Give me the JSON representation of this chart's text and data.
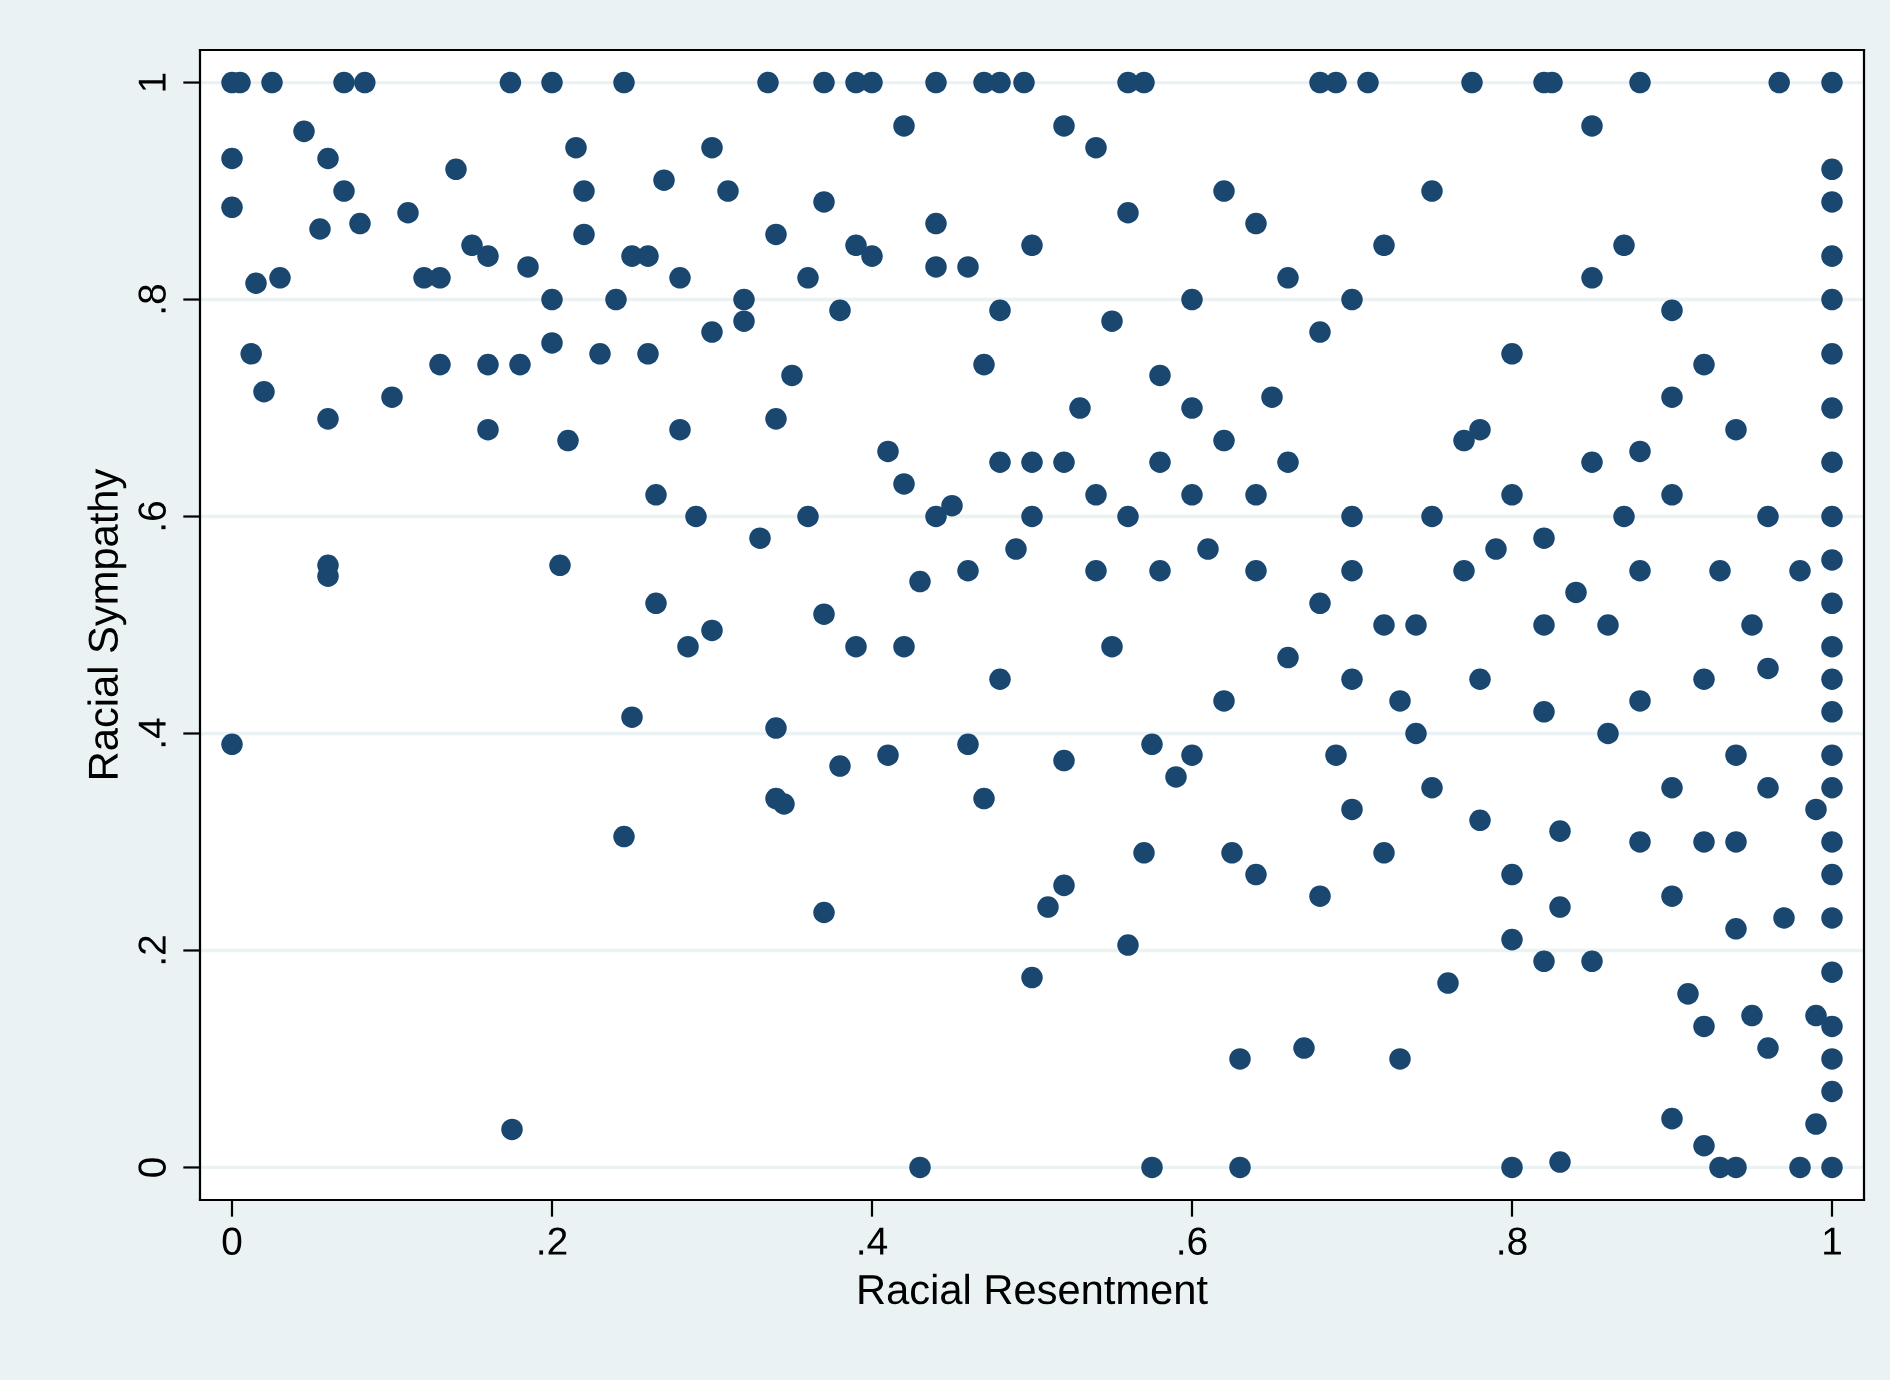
{
  "chart_data": {
    "type": "scatter",
    "xlabel": "Racial Resentment",
    "ylabel": "Racial Sympathy",
    "xlim": [
      -0.02,
      1.02
    ],
    "ylim": [
      -0.03,
      1.03
    ],
    "xticks": [
      {
        "value": 0,
        "label": "0"
      },
      {
        "value": 0.2,
        "label": ".2"
      },
      {
        "value": 0.4,
        "label": ".4"
      },
      {
        "value": 0.6,
        "label": ".6"
      },
      {
        "value": 0.8,
        "label": ".8"
      },
      {
        "value": 1,
        "label": "1"
      }
    ],
    "yticks": [
      {
        "value": 0,
        "label": "0"
      },
      {
        "value": 0.2,
        "label": ".2"
      },
      {
        "value": 0.4,
        "label": ".4"
      },
      {
        "value": 0.6,
        "label": ".6"
      },
      {
        "value": 0.8,
        "label": ".8"
      },
      {
        "value": 1,
        "label": "1"
      }
    ],
    "grid": "y",
    "marker": "circle",
    "series": [
      {
        "color": "#1a476f",
        "x": [
          0,
          0.005,
          0.025,
          0.07,
          0.083,
          0.174,
          0.2,
          0.245,
          0.335,
          0.37,
          0.39,
          0.4,
          0.44,
          0.47,
          0.48,
          0.495,
          0.56,
          0.57,
          0.68,
          0.69,
          0.71,
          0.775,
          0.82,
          0.825,
          0.88,
          0.967,
          1,
          0,
          0,
          0,
          0.012,
          0.015,
          0.02,
          0.03,
          0.045,
          0.055,
          0.06,
          0.06,
          0.06,
          0.06,
          0.07,
          0.08,
          0.1,
          0.12,
          0.13,
          0.14,
          0.16,
          0.16,
          0.16,
          0.175,
          0.185,
          0.2,
          0.2,
          0.205,
          0.21,
          0.215,
          0.22,
          0.23,
          0.25,
          0.245,
          0.25,
          0.26,
          0.265,
          0.265,
          0.27,
          0.28,
          0.285,
          0.29,
          0.3,
          0.3,
          0.31,
          0.32,
          0.33,
          0.34,
          0.34,
          0.345,
          0.34,
          0.35,
          0.36,
          0.37,
          0.37,
          0.37,
          0.38,
          0.39,
          0.39,
          0.41,
          0.41,
          0.42,
          0.43,
          0.43,
          0.44,
          0.45,
          0.46,
          0.47,
          0.47,
          0.48,
          0.49,
          0.5,
          0.5,
          0.51,
          0.52,
          0.52,
          0.52,
          0.53,
          0.54,
          0.55,
          0.55,
          0.56,
          0.57,
          0.575,
          0.575,
          0.58,
          0.59,
          0.6,
          0.6,
          0.61,
          0.62,
          0.625,
          0.63,
          0.63,
          0.64,
          0.64,
          0.65,
          0.66,
          0.67,
          0.68,
          0.69,
          0.7,
          0.7,
          0.72,
          0.73,
          0.73,
          0.74,
          0.75,
          0.76,
          0.77,
          0.78,
          0.79,
          0.8,
          0.8,
          0.8,
          0.82,
          0.82,
          0.83,
          0.83,
          0.83,
          0.84,
          0.85,
          0.86,
          0.87,
          0.88,
          0.9,
          0.9,
          0.91,
          0.92,
          0.92,
          0.93,
          0.94,
          0.94,
          0.95,
          0.96,
          0.97,
          0.98,
          0.99,
          0.99,
          0.99,
          1,
          1,
          1,
          1,
          1,
          1,
          1,
          1,
          1,
          1,
          1,
          1,
          1,
          1,
          1,
          1,
          1,
          1,
          1,
          1,
          1,
          1,
          1,
          0.95,
          0.93,
          0.96,
          0.94,
          0.92,
          0.9,
          0.88,
          0.85,
          0.87,
          0.9,
          0.85,
          0.8,
          0.78,
          0.75,
          0.72,
          0.7,
          0.68,
          0.66,
          0.64,
          0.62,
          0.6,
          0.58,
          0.56,
          0.54,
          0.52,
          0.5,
          0.48,
          0.46,
          0.44,
          0.42,
          0.4,
          0.38,
          0.36,
          0.34,
          0.32,
          0.3,
          0.28,
          0.26,
          0.24,
          0.22,
          0.18,
          0.15,
          0.13,
          0.11,
          0.7,
          0.72,
          0.75,
          0.77,
          0.8,
          0.82,
          0.85,
          0.88,
          0.9,
          0.92,
          0.94,
          0.96,
          0.98,
          0.66,
          0.64,
          0.62,
          0.6,
          0.58,
          0.56,
          0.54,
          0.5,
          0.48,
          0.46,
          0.44,
          0.42,
          0.68,
          0.7,
          0.74,
          0.78,
          0.82,
          0.86,
          0.88,
          0.9,
          0.92,
          0.94,
          0.96
        ],
        "values": [
          1,
          1,
          1,
          1,
          1,
          1,
          1,
          1,
          1,
          1,
          1,
          1,
          1,
          1,
          1,
          1,
          1,
          1,
          1,
          1,
          1,
          1,
          1,
          1,
          1,
          1,
          1,
          0.93,
          0.885,
          0.39,
          0.75,
          0.815,
          0.715,
          0.82,
          0.955,
          0.865,
          0.93,
          0.69,
          0.555,
          0.545,
          0.9,
          0.87,
          0.71,
          0.82,
          0.74,
          0.92,
          0.84,
          0.74,
          0.68,
          0.035,
          0.83,
          0.8,
          0.76,
          0.555,
          0.67,
          0.94,
          0.9,
          0.75,
          0.415,
          0.305,
          0.84,
          0.75,
          0.62,
          0.52,
          0.91,
          0.68,
          0.48,
          0.6,
          0.94,
          0.495,
          0.9,
          0.78,
          0.58,
          0.405,
          0.34,
          0.335,
          0.69,
          0.73,
          0.6,
          0.235,
          0.89,
          0.51,
          0.37,
          0.48,
          0.85,
          0.38,
          0.66,
          0.48,
          0,
          0.54,
          0.83,
          0.61,
          0.39,
          0.34,
          0.74,
          0.45,
          0.57,
          0.65,
          0.175,
          0.24,
          0.26,
          0.375,
          0.65,
          0.7,
          0.55,
          0.48,
          0.78,
          0.205,
          0.29,
          0,
          0.39,
          0.65,
          0.36,
          0.38,
          0.8,
          0.57,
          0.43,
          0.29,
          0,
          0.1,
          0.27,
          0.62,
          0.71,
          0.47,
          0.11,
          0.25,
          0.38,
          0.33,
          0.6,
          0.29,
          0.1,
          0.43,
          0.5,
          0.35,
          0.17,
          0.67,
          0.32,
          0.57,
          0,
          0.27,
          0.21,
          0.42,
          0.19,
          0.31,
          0.24,
          0.005,
          0.53,
          0.19,
          0.5,
          0.6,
          0.43,
          0.045,
          0.35,
          0.16,
          0.02,
          0.13,
          0,
          0,
          0.22,
          0.14,
          0.11,
          0.23,
          0,
          0.04,
          0.14,
          0.33,
          0,
          0.07,
          0.1,
          0.13,
          0.18,
          0.23,
          0.27,
          0.3,
          0.35,
          0.38,
          0.42,
          0.45,
          0.48,
          0.52,
          0.56,
          0.6,
          0.65,
          0.7,
          0.75,
          0.8,
          0.84,
          0.89,
          0.92,
          0.5,
          0.55,
          0.6,
          0.68,
          0.74,
          0.71,
          0.66,
          0.82,
          0.85,
          0.79,
          0.96,
          0.75,
          0.68,
          0.9,
          0.85,
          0.8,
          0.77,
          0.82,
          0.87,
          0.9,
          0.7,
          0.73,
          0.88,
          0.94,
          0.96,
          0.85,
          0.79,
          0.83,
          0.87,
          0.96,
          0.84,
          0.79,
          0.82,
          0.86,
          0.8,
          0.77,
          0.82,
          0.84,
          0.8,
          0.86,
          0.74,
          0.85,
          0.82,
          0.88,
          0.55,
          0.5,
          0.6,
          0.55,
          0.62,
          0.58,
          0.65,
          0.55,
          0.62,
          0.45,
          0.38,
          0.46,
          0.55,
          0.65,
          0.55,
          0.67,
          0.62,
          0.55,
          0.6,
          0.62,
          0.6,
          0.65,
          0.55,
          0.6,
          0.63,
          0.52,
          0.45,
          0.4,
          0.45,
          0.5,
          0.4,
          0.3,
          0.25,
          0.3,
          0.3,
          0.35
        ]
      }
    ]
  }
}
